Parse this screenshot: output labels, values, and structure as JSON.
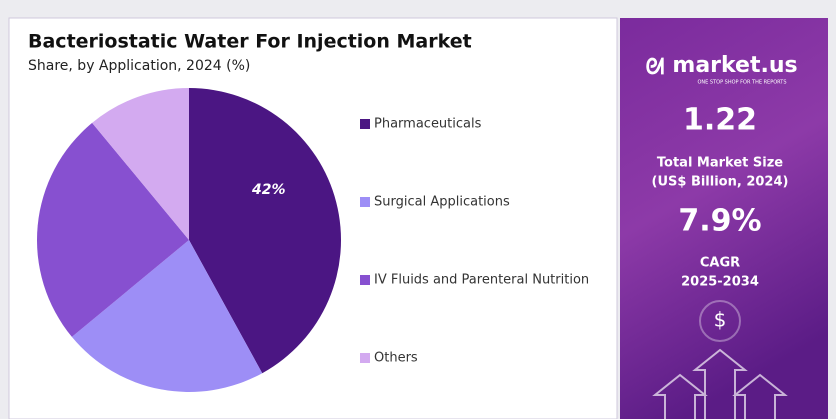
{
  "chart_data": {
    "type": "pie",
    "title": "Bacteriostatic Water For Injection Market",
    "subtitle": "Share, by Application, 2024 (%)",
    "categories": [
      "Pharmaceuticals",
      "Surgical Applications",
      "IV Fluids and Parenteral Nutrition",
      "Others"
    ],
    "values": [
      42,
      22,
      25,
      11
    ],
    "value_labels": [
      "42%",
      null,
      null,
      null
    ],
    "colors": [
      "#4b1683",
      "#9d8ef6",
      "#8750d0",
      "#d3aaf0"
    ]
  },
  "side_panel": {
    "brand": "market.us",
    "tagline": "ONE STOP SHOP FOR THE REPORTS",
    "market_size": "1.22",
    "market_size_label_1": "Total Market Size",
    "market_size_label_2": "(US$ Billion, 2024)",
    "cagr": "7.9%",
    "cagr_label_1": "CAGR",
    "cagr_label_2": "2025-2034",
    "currency": "$"
  }
}
